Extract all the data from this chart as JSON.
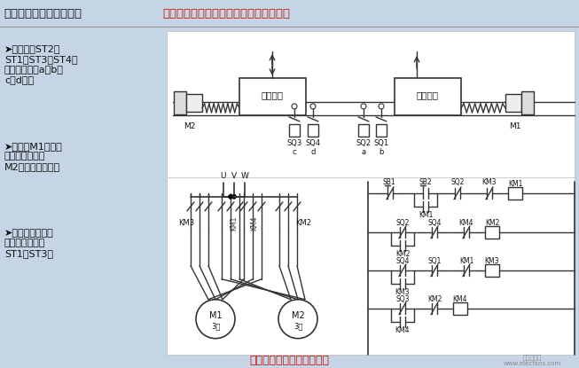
{
  "title_black": "动力头的自动循环控制：",
  "title_red": "行程开关按行程实现动力头的往复运动。",
  "bottom_title": "双动力头自动循环控制电路",
  "bg_color": "#c5d5e5",
  "diagram_bg": "#f0f0f0",
  "text_black": "#111111",
  "text_red": "#cc1100",
  "line_color": "#333333",
  "bullet1": "➤行程开关ST2、\nST1、ST3、ST4分\n别装在床身的a、b、\nc、d处。",
  "bullet2": "➤电动机M1带动动\n力头１，电动机\nM2带动动力头２。",
  "bullet3": "➤动力头１和２在\n原位时分别压下\nST1和ST3。",
  "watermark1": "电子发烧友",
  "watermark2": "www.elecfans.com"
}
